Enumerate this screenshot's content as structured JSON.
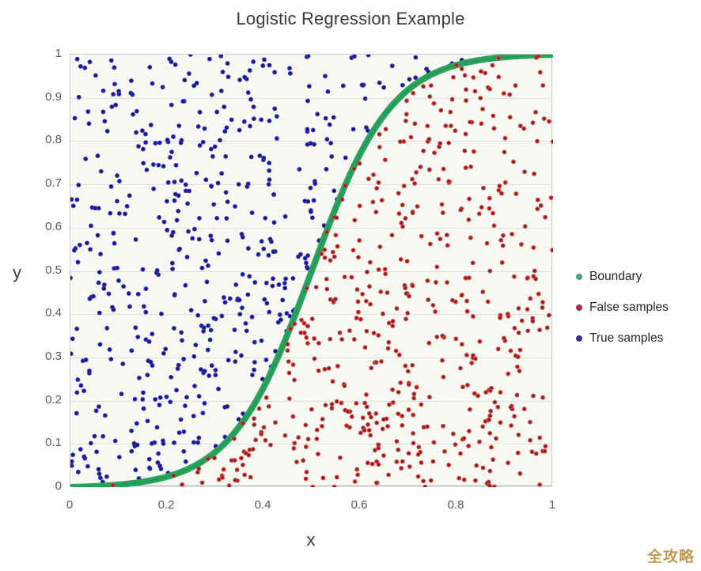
{
  "title": "Logistic Regression Example",
  "watermark": "全攻略",
  "axes": {
    "x_label": "x",
    "y_label": "y",
    "x_tick_labels": [
      "0",
      "0.2",
      "0.4",
      "0.6",
      "0.8",
      "1"
    ],
    "y_tick_labels": [
      "1",
      "0.9",
      "0.8",
      "0.7",
      "0.6",
      "0.5",
      "0.4",
      "0.3",
      "0.2",
      "0.1",
      "0"
    ]
  },
  "legend": {
    "items": [
      {
        "label": "Boundary",
        "color": "#4f9c77"
      },
      {
        "label": "False samples",
        "color": "#b12a47"
      },
      {
        "label": "True samples",
        "color": "#32329e"
      }
    ]
  },
  "chart_data": {
    "type": "scatter",
    "title": "Logistic Regression Example",
    "xlabel": "x",
    "ylabel": "y",
    "xlim": [
      0,
      1
    ],
    "ylim": [
      0,
      1
    ],
    "x_ticks": [
      0,
      0.2,
      0.4,
      0.6,
      0.8,
      1
    ],
    "y_ticks": [
      0,
      0.1,
      0.2,
      0.3,
      0.4,
      0.5,
      0.6,
      0.7,
      0.8,
      0.9,
      1
    ],
    "grid": "horizontal-only",
    "grid_color": "#dedede",
    "plot_background": "#f9f9f4",
    "legend_position": "right-center",
    "boundary": {
      "name": "Boundary",
      "curve": "normalized logistic sigmoid from (0,0) to (1,1), midpoint (0.5,0.5)",
      "formula": "y = (s(x)-s(0))/(s(1)-s(0)),  s(x) = 1/(1+exp(-k*(x-0.5)))",
      "k": 12,
      "color": "#28a45d",
      "core_color": "#1e8f4f",
      "line_width": 8,
      "sample_points_x": [
        0,
        0.1,
        0.2,
        0.3,
        0.4,
        0.5,
        0.6,
        0.7,
        0.8,
        0.9,
        1
      ],
      "sample_points_y": [
        0,
        0.008,
        0.024,
        0.081,
        0.23,
        0.5,
        0.77,
        0.919,
        0.976,
        0.992,
        1
      ]
    },
    "series": [
      {
        "name": "True samples",
        "marker": "dot",
        "marker_diameter_px": 5.8,
        "color": "#2f2fbe",
        "core_color": "#15157d",
        "count": 500,
        "distribution": "uniform over region above boundary curve (upper-left)"
      },
      {
        "name": "False samples",
        "marker": "dot",
        "marker_diameter_px": 5.8,
        "color": "#d34040",
        "core_color": "#8c1a1a",
        "count": 540,
        "distribution": "uniform over region below boundary curve (lower-right)"
      }
    ],
    "random_seed": 1337
  }
}
